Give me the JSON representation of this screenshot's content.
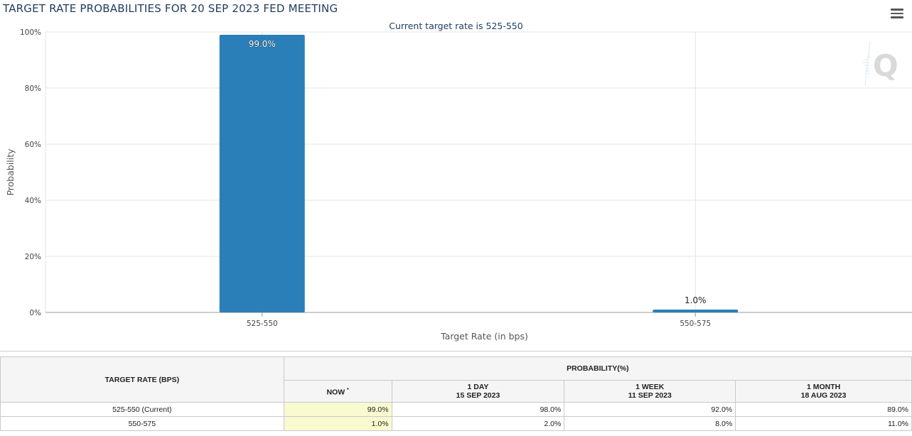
{
  "chart_data": {
    "type": "bar",
    "title": "TARGET RATE PROBABILITIES FOR 20 SEP 2023 FED MEETING",
    "subtitle": "Current target rate is 525-550",
    "xlabel": "Target Rate (in bps)",
    "ylabel": "Probability",
    "categories": [
      "525-550",
      "550-575"
    ],
    "values": [
      99.0,
      1.0
    ],
    "data_labels": [
      "99.0%",
      "1.0%"
    ],
    "ylim": [
      0,
      100
    ],
    "yticks": [
      "0%",
      "20%",
      "40%",
      "60%",
      "80%",
      "100%"
    ],
    "grid": true,
    "legend": "none",
    "bar_color": "#2a7fb8"
  },
  "menu_icon": "hamburger-menu-icon",
  "watermark_icon": "quikstrike-q-logo",
  "table": {
    "target_rate_header": "TARGET RATE (BPS)",
    "probability_header": "PROBABILITY(%)",
    "columns": [
      {
        "label": "NOW",
        "marker": "*",
        "date": ""
      },
      {
        "label": "1 DAY",
        "date": "15 SEP 2023"
      },
      {
        "label": "1 WEEK",
        "date": "11 SEP 2023"
      },
      {
        "label": "1 MONTH",
        "date": "18 AUG 2023"
      }
    ],
    "rows": [
      {
        "rate": "525-550 (Current)",
        "now": "99.0%",
        "day1": "98.0%",
        "week1": "92.0%",
        "month1": "89.0%"
      },
      {
        "rate": "550-575",
        "now": "1.0%",
        "day1": "2.0%",
        "week1": "8.0%",
        "month1": "11.0%"
      }
    ]
  }
}
